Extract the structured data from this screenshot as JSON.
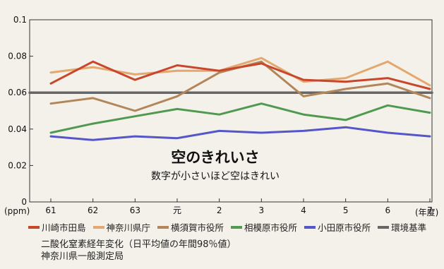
{
  "chart_data": {
    "type": "line",
    "title": "空のきれいさ",
    "subtitle": "数字が小さいほど空はきれい",
    "ylabel": "(ppm)",
    "xlabel": "(年度)",
    "ylim": [
      0,
      0.1
    ],
    "yticks": [
      "0",
      "0.02",
      "0.04",
      "0.06",
      "0.08",
      "0.1"
    ],
    "categories": [
      "61",
      "62",
      "63",
      "元",
      "2",
      "3",
      "4",
      "5",
      "6",
      "7"
    ],
    "series": [
      {
        "name": "川崎市田島",
        "color": "#c8472c",
        "values": [
          0.065,
          0.077,
          0.067,
          0.075,
          0.072,
          0.076,
          0.067,
          0.066,
          0.068,
          0.062
        ]
      },
      {
        "name": "神奈川県庁",
        "color": "#e3a86f",
        "values": [
          0.071,
          0.074,
          0.07,
          0.072,
          0.072,
          0.079,
          0.066,
          0.068,
          0.077,
          0.064
        ]
      },
      {
        "name": "横須賀市役所",
        "color": "#b3865a",
        "values": [
          0.054,
          0.057,
          0.05,
          0.058,
          0.071,
          0.077,
          0.058,
          0.062,
          0.065,
          0.057
        ]
      },
      {
        "name": "相模原市役所",
        "color": "#4f9a50",
        "values": [
          0.038,
          0.043,
          0.047,
          0.051,
          0.048,
          0.054,
          0.048,
          0.045,
          0.053,
          0.049
        ]
      },
      {
        "name": "小田原市役所",
        "color": "#5557c8",
        "values": [
          0.036,
          0.034,
          0.036,
          0.035,
          0.039,
          0.038,
          0.039,
          0.041,
          0.038,
          0.036
        ]
      },
      {
        "name": "環境基準",
        "color": "#666666",
        "values": [
          0.06,
          0.06,
          0.06,
          0.06,
          0.06,
          0.06,
          0.06,
          0.06,
          0.06,
          0.06
        ]
      }
    ]
  },
  "footnote": {
    "line1": "二酸化窒素経年変化（日平均値の年間98％値）",
    "line2": "神奈川県一般測定局"
  }
}
